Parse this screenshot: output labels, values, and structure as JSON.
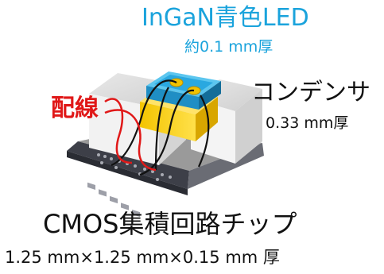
{
  "led": {
    "title": "InGaN青色LED",
    "thickness": "約0.1 mm厚",
    "color": "#1aa3dc"
  },
  "capacitor": {
    "title": "コンデンサ",
    "thickness": "0.33 mm厚"
  },
  "wiring": {
    "label": "配線",
    "color": "#e01818"
  },
  "chip": {
    "title": "CMOS集積回路チップ",
    "dimensions": "1.25 mm×1.25  mm×0.15  mm  厚"
  }
}
